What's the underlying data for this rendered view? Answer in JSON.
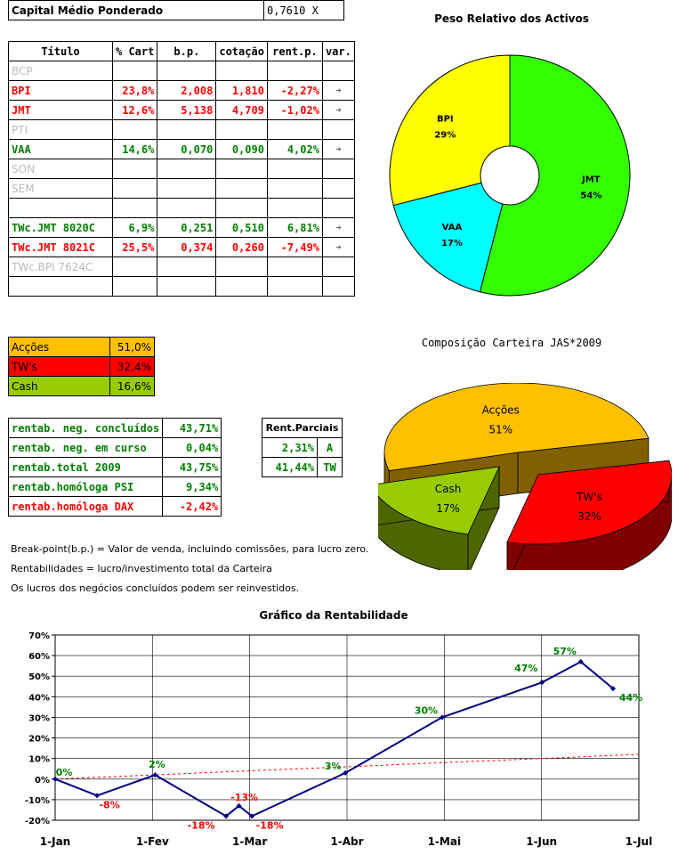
{
  "capital": {
    "label": "Capital Médio Ponderado",
    "value": "0,7610",
    "unit": "X"
  },
  "assets_table": {
    "headers": [
      "Título",
      "% Cart",
      "b.p.",
      "cotação",
      "rent.p.",
      "var."
    ],
    "rows": [
      {
        "name": "BCP",
        "cart": "",
        "bp": "",
        "cot": "",
        "rent": "",
        "var": "",
        "style": "gray"
      },
      {
        "name": "BPI",
        "cart": "23,8%",
        "bp": "2,008",
        "cot": "1,810",
        "rent": "-2,27%",
        "var": "➔",
        "style": "red"
      },
      {
        "name": "JMT",
        "cart": "12,6%",
        "bp": "5,138",
        "cot": "4,709",
        "rent": "-1,02%",
        "var": "➔",
        "style": "red"
      },
      {
        "name": "PTI",
        "cart": "",
        "bp": "",
        "cot": "",
        "rent": "",
        "var": "",
        "style": "gray"
      },
      {
        "name": "VAA",
        "cart": "14,6%",
        "bp": "0,070",
        "cot": "0,090",
        "rent": "4,02%",
        "var": "➔",
        "style": "green"
      },
      {
        "name": "SON",
        "cart": "",
        "bp": "",
        "cot": "",
        "rent": "",
        "var": "",
        "style": "gray"
      },
      {
        "name": "SEM",
        "cart": "",
        "bp": "",
        "cot": "",
        "rent": "",
        "var": "",
        "style": "gray"
      },
      {
        "name": "",
        "cart": "",
        "bp": "",
        "cot": "",
        "rent": "",
        "var": "",
        "style": "gray"
      },
      {
        "name": "TWc.JMT 8020C",
        "cart": "6,9%",
        "bp": "0,251",
        "cot": "0,510",
        "rent": "6,81%",
        "var": "➔",
        "style": "green"
      },
      {
        "name": "TWc.JMT 8021C",
        "cart": "25,5%",
        "bp": "0,374",
        "cot": "0,260",
        "rent": "-7,49%",
        "var": "➔",
        "style": "red"
      },
      {
        "name": "TWc.BPI 7624C",
        "cart": "",
        "bp": "",
        "cot": "",
        "rent": "",
        "var": "",
        "style": "gray"
      },
      {
        "name": "",
        "cart": "",
        "bp": "",
        "cot": "",
        "rent": "",
        "var": "",
        "style": "gray"
      }
    ]
  },
  "composition": [
    {
      "label": "Acções",
      "value": "51,0%",
      "color": "#ffc000"
    },
    {
      "label": "TW's",
      "value": "32,4%",
      "color": "#ff0000"
    },
    {
      "label": "Cash",
      "value": "16,6%",
      "color": "#99cc00"
    }
  ],
  "returns": [
    {
      "label": "rentab. neg. concluídos",
      "value": "43,71%",
      "style": "green"
    },
    {
      "label": "rentab. neg. em curso",
      "value": "0,04%",
      "style": "green"
    },
    {
      "label": "rentab.total 2009",
      "value": "43,75%",
      "style": "green"
    },
    {
      "label": "rentab.homóloga PSI",
      "value": "9,34%",
      "style": "green"
    },
    {
      "label": "rentab.homóloga DAX",
      "value": "-2,42%",
      "style": "red"
    }
  ],
  "partials": {
    "header": "Rent.Parciais",
    "rows": [
      {
        "value": "2,31%",
        "tag": "A"
      },
      {
        "value": "41,44%",
        "tag": "TW"
      }
    ]
  },
  "notes": [
    "Break-point(b.p.) = Valor de venda, incluindo comissões, para lucro zero.",
    "Rentabilidades = lucro/investimento total da Carteira",
    "Os lucros dos negócios concluídos podem ser reinvestidos."
  ],
  "chart_data": [
    {
      "type": "pie",
      "title": "Peso Relativo dos Activos",
      "variant": "doughnut",
      "slices": [
        {
          "label": "JMT",
          "value": 54,
          "color": "#33ff00"
        },
        {
          "label": "VAA",
          "value": 17,
          "color": "#00ffff"
        },
        {
          "label": "BPI",
          "value": 29,
          "color": "#ffff00"
        }
      ]
    },
    {
      "type": "pie",
      "title": "Composição Carteira JAS*2009",
      "variant": "3d-exploded",
      "slices": [
        {
          "label": "Acções",
          "value": 51,
          "color": "#ffc000",
          "side": "#806000"
        },
        {
          "label": "TW's",
          "value": 32,
          "color": "#ff0000",
          "side": "#800000"
        },
        {
          "label": "Cash",
          "value": 17,
          "color": "#99cc00",
          "side": "#4d6600"
        }
      ]
    },
    {
      "type": "line",
      "title": "Gráfico da Rentabilidade",
      "ylim": [
        -20,
        70
      ],
      "yticks": [
        -20,
        -10,
        0,
        10,
        20,
        30,
        40,
        50,
        60,
        70
      ],
      "xticks": [
        "1-Jan",
        "1-Fev",
        "1-Mar",
        "1-Abr",
        "1-Mai",
        "1-Jun",
        "1-Jul"
      ],
      "xlim_days": [
        0,
        181
      ],
      "grid": true,
      "series": [
        {
          "color": "#000080",
          "points": [
            {
              "day": 0,
              "value": 0,
              "label": "0%",
              "lc": "#008000"
            },
            {
              "day": 13,
              "value": -8,
              "label": "-8%",
              "lc": "#ff0000"
            },
            {
              "day": 31,
              "value": 2,
              "label": "2%",
              "lc": "#008000"
            },
            {
              "day": 53,
              "value": -18,
              "label": "-18%",
              "lc": "#ff0000"
            },
            {
              "day": 57,
              "value": -13,
              "label": "-13%",
              "lc": "#ff0000"
            },
            {
              "day": 61,
              "value": -18,
              "label": "-18%",
              "lc": "#ff0000"
            },
            {
              "day": 90,
              "value": 3,
              "label": "3%",
              "lc": "#008000"
            },
            {
              "day": 120,
              "value": 30,
              "label": "30%",
              "lc": "#008000"
            },
            {
              "day": 151,
              "value": 47,
              "label": "47%",
              "lc": "#008000"
            },
            {
              "day": 163,
              "value": 57,
              "label": "57%",
              "lc": "#008000"
            },
            {
              "day": 173,
              "value": 44,
              "label": "44%",
              "lc": "#008000"
            }
          ]
        }
      ],
      "trendline": {
        "color": "#ff0000",
        "from": 0,
        "to": 12
      }
    }
  ]
}
